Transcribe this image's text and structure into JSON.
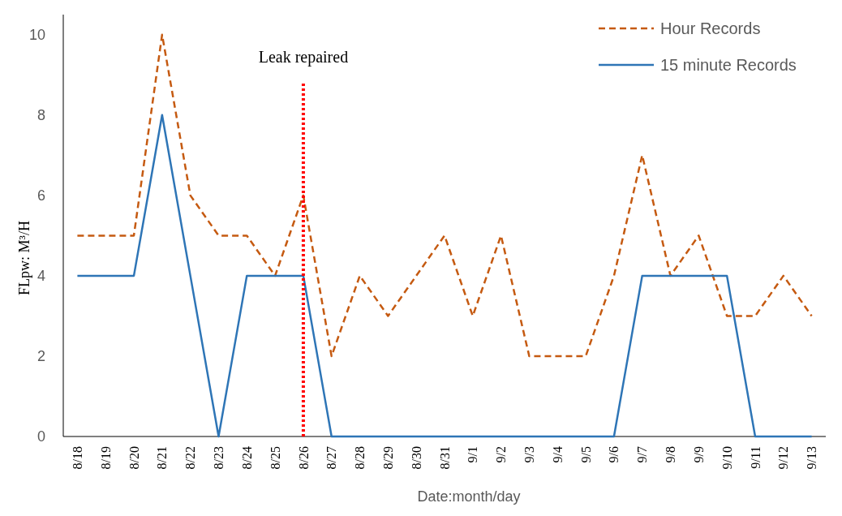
{
  "chart_data": {
    "type": "line",
    "xlabel": "Date:month/day",
    "ylabel": "FLpw: M³/H",
    "categories": [
      "8/18",
      "8/19",
      "8/20",
      "8/21",
      "8/22",
      "8/23",
      "8/24",
      "8/25",
      "8/26",
      "8/27",
      "8/28",
      "8/29",
      "8/30",
      "8/31",
      "9/1",
      "9/2",
      "9/3",
      "9/4",
      "9/5",
      "9/6",
      "9/7",
      "9/8",
      "9/9",
      "9/10",
      "9/11",
      "9/12",
      "9/13"
    ],
    "series": [
      {
        "name": "Hour Records",
        "color": "#c55a11",
        "line_style": "dashed",
        "values": [
          5,
          5,
          5,
          10,
          6,
          5,
          5,
          4,
          6,
          2,
          4,
          3,
          4,
          5,
          3,
          5,
          2,
          2,
          2,
          4,
          7,
          4,
          5,
          3,
          3,
          4,
          3
        ]
      },
      {
        "name": "15 minute Records",
        "color": "#2e75b6",
        "line_style": "solid",
        "values": [
          4,
          4,
          4,
          8,
          4,
          0,
          4,
          4,
          4,
          0,
          0,
          0,
          0,
          0,
          0,
          0,
          0,
          0,
          0,
          0,
          4,
          4,
          4,
          4,
          0,
          0,
          0
        ]
      }
    ],
    "ylim": [
      0,
      10.5
    ],
    "yticks": [
      0,
      2,
      4,
      6,
      8,
      10
    ],
    "grid": false,
    "legend": "top right",
    "marker": "none",
    "ref_lines": [
      {
        "axis": "x",
        "value": "8/26",
        "label": "Leak repaired",
        "color": "#ff0000",
        "line_style": "dotted"
      }
    ]
  }
}
